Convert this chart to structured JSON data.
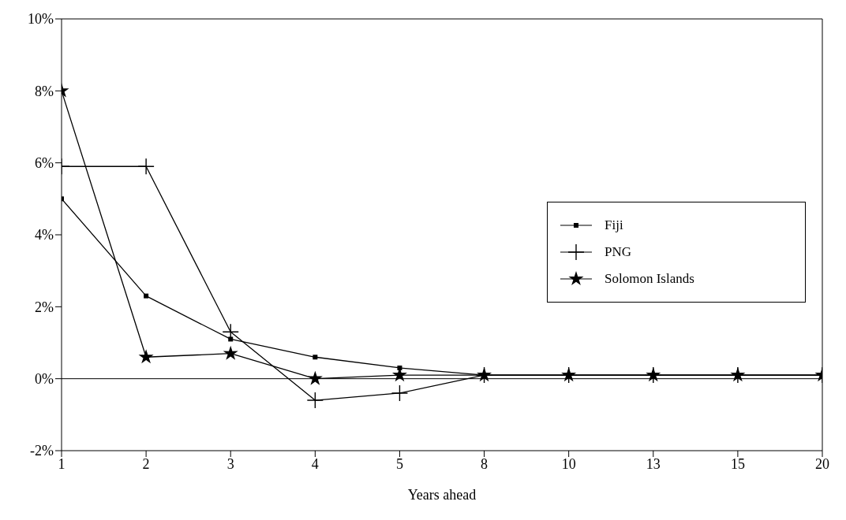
{
  "chart_data": {
    "type": "line",
    "xlabel": "Years ahead",
    "categories": [
      "1",
      "2",
      "3",
      "4",
      "5",
      "8",
      "10",
      "13",
      "15",
      "20"
    ],
    "series": [
      {
        "name": "Fiji",
        "color": "#000000",
        "marker": "square",
        "values": [
          5.0,
          2.3,
          1.1,
          0.6,
          0.3,
          0.1,
          0.1,
          0.1,
          0.1,
          0.1
        ]
      },
      {
        "name": "PNG",
        "color": "#000000",
        "marker": "cross",
        "values": [
          5.9,
          5.9,
          1.3,
          -0.6,
          -0.4,
          0.1,
          0.1,
          0.1,
          0.1,
          0.1
        ]
      },
      {
        "name": "Solomon Islands",
        "color": "#000000",
        "marker": "star",
        "values": [
          8.0,
          0.6,
          0.7,
          0.0,
          0.1,
          0.1,
          0.1,
          0.1,
          0.1,
          0.1
        ]
      }
    ],
    "ylim": [
      -2,
      10
    ],
    "yticks": [
      {
        "value": -2,
        "label": "-2%"
      },
      {
        "value": 0,
        "label": "0%"
      },
      {
        "value": 2,
        "label": "2%"
      },
      {
        "value": 4,
        "label": "4%"
      },
      {
        "value": 6,
        "label": "6%"
      },
      {
        "value": 8,
        "label": "8%"
      },
      {
        "value": 10,
        "label": "10%"
      }
    ],
    "ref_lines": [
      {
        "axis": "y",
        "value": 0,
        "color": "#000000"
      }
    ],
    "legend": "right",
    "grid": false,
    "line_style": "solid"
  }
}
